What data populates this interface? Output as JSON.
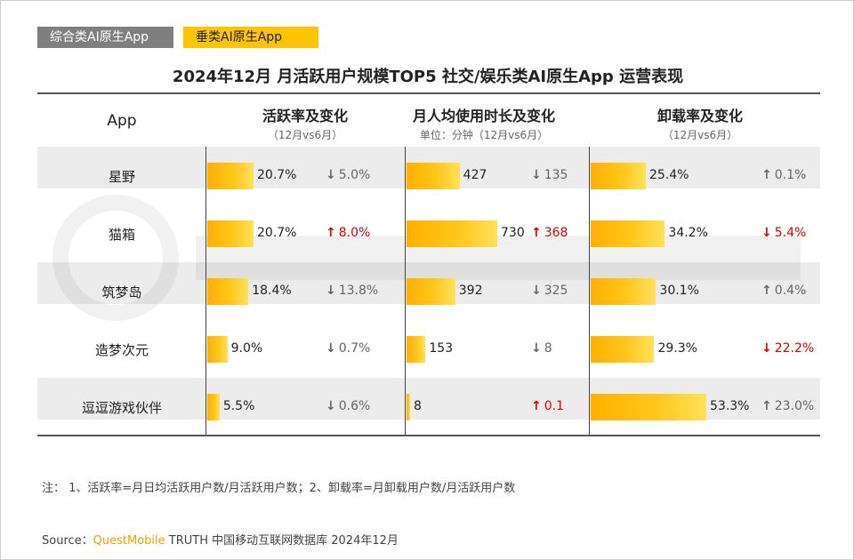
{
  "tabs": [
    {
      "label": "综合类AI原生App",
      "active": false
    },
    {
      "label": "垂类AI原生App",
      "active": true
    }
  ],
  "colors": {
    "accent": "#ffc400",
    "bar_start": "#ffb000",
    "bar_end": "#ffe15a",
    "increase_red": "#e00000",
    "neutral": "#666666"
  },
  "chart_data": {
    "type": "table",
    "title": "2024年12月 月活跃用户规模TOP5 社交/娱乐类AI原生App 运营表现",
    "columns": [
      {
        "key": "app",
        "label": "App",
        "sub": ""
      },
      {
        "key": "activity",
        "label": "活跃率及变化",
        "sub": "（12月vs6月）"
      },
      {
        "key": "usage",
        "label": "月人均使用时长及变化",
        "sub": "单位：分钟（12月vs6月）"
      },
      {
        "key": "uninstall",
        "label": "卸载率及变化",
        "sub": "（12月vs6月）"
      }
    ],
    "rows": [
      {
        "app": "星野",
        "activity": {
          "value": 20.7,
          "label": "20.7%",
          "change": "5.0%",
          "direction": "down",
          "highlight": false
        },
        "usage": {
          "value": 427,
          "label": "427",
          "change": "135",
          "direction": "down",
          "highlight": false
        },
        "uninstall": {
          "value": 25.4,
          "label": "25.4%",
          "change": "0.1%",
          "direction": "up",
          "highlight": false
        }
      },
      {
        "app": "猫箱",
        "activity": {
          "value": 20.7,
          "label": "20.7%",
          "change": "8.0%",
          "direction": "up",
          "highlight": true
        },
        "usage": {
          "value": 730,
          "label": "730",
          "change": "368",
          "direction": "up",
          "highlight": true
        },
        "uninstall": {
          "value": 34.2,
          "label": "34.2%",
          "change": "5.4%",
          "direction": "down",
          "highlight": true
        }
      },
      {
        "app": "筑梦岛",
        "activity": {
          "value": 18.4,
          "label": "18.4%",
          "change": "13.8%",
          "direction": "down",
          "highlight": false
        },
        "usage": {
          "value": 392,
          "label": "392",
          "change": "325",
          "direction": "down",
          "highlight": false
        },
        "uninstall": {
          "value": 30.1,
          "label": "30.1%",
          "change": "0.4%",
          "direction": "up",
          "highlight": false
        }
      },
      {
        "app": "造梦次元",
        "activity": {
          "value": 9.0,
          "label": "9.0%",
          "change": "0.7%",
          "direction": "down",
          "highlight": false
        },
        "usage": {
          "value": 153,
          "label": "153",
          "change": "8",
          "direction": "down",
          "highlight": false
        },
        "uninstall": {
          "value": 29.3,
          "label": "29.3%",
          "change": "22.2%",
          "direction": "down",
          "highlight": true
        }
      },
      {
        "app": "逗逗游戏伙伴",
        "activity": {
          "value": 5.5,
          "label": "5.5%",
          "change": "0.6%",
          "direction": "down",
          "highlight": false
        },
        "usage": {
          "value": 8,
          "label": "8",
          "change": "0.1",
          "direction": "up",
          "highlight": true
        },
        "uninstall": {
          "value": 53.3,
          "label": "53.3%",
          "change": "23.0%",
          "direction": "up",
          "highlight": false
        }
      }
    ],
    "scales": {
      "activity_max": 20.7,
      "usage_max": 730,
      "uninstall_max": 53.3
    }
  },
  "note": "注：  1、活跃率=月日均活跃用户数/月活跃用户数；2、卸载率=月卸载用户数/月活跃用户数",
  "source": {
    "label": "Source：",
    "brand": "QuestMobile",
    "text": "TRUTH 中国移动互联网数据库 2024年12月"
  }
}
